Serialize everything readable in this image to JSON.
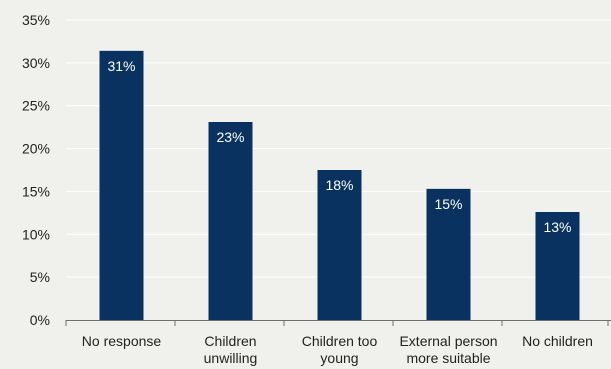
{
  "colors": {
    "background": "#f0f0ec",
    "bar": "#0a3260",
    "gridline": "#ffffff",
    "axis": "#6e6e6e",
    "text": "#222222",
    "data_label": "#ffffff"
  },
  "chart_data": {
    "type": "bar",
    "title": "",
    "xlabel": "",
    "ylabel": "",
    "categories": [
      [
        "No response"
      ],
      [
        "Children",
        "unwilling"
      ],
      [
        "Children too",
        "young"
      ],
      [
        "External person",
        "more suitable"
      ],
      [
        "No children"
      ]
    ],
    "values": [
      31.4,
      23.1,
      17.5,
      15.3,
      12.6
    ],
    "data_labels": [
      "31%",
      "23%",
      "18%",
      "15%",
      "13%"
    ],
    "ylim": [
      0,
      35
    ],
    "yticks": [
      0,
      5,
      10,
      15,
      20,
      25,
      30,
      35
    ],
    "ytick_labels": [
      "0%",
      "5%",
      "10%",
      "15%",
      "20%",
      "25%",
      "30%",
      "35%"
    ],
    "grid": true,
    "legend": "none"
  }
}
